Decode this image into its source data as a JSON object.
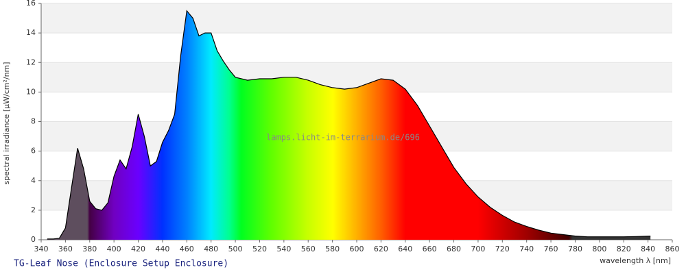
{
  "chart_data": {
    "type": "area",
    "title": "TG-Leaf Nose (Enclosure Setup Enclosure)",
    "watermark": "lamps.licht-im-terrarium.de/696",
    "x_label": "wavelength λ [nm]",
    "y_label": "spectral irradiance [µW/cm²/nm]",
    "x": [
      345,
      350,
      355,
      360,
      365,
      370,
      375,
      380,
      385,
      390,
      395,
      400,
      405,
      410,
      415,
      420,
      425,
      430,
      435,
      440,
      445,
      450,
      455,
      460,
      465,
      470,
      475,
      480,
      485,
      490,
      495,
      500,
      510,
      520,
      530,
      540,
      550,
      560,
      570,
      580,
      590,
      600,
      610,
      620,
      630,
      640,
      650,
      660,
      670,
      680,
      690,
      700,
      710,
      720,
      730,
      740,
      750,
      760,
      770,
      780,
      790,
      800,
      810,
      820,
      830,
      842
    ],
    "values": [
      0.05,
      0.05,
      0.1,
      0.8,
      3.5,
      6.2,
      4.8,
      2.6,
      2.1,
      2.0,
      2.5,
      4.3,
      5.4,
      4.8,
      6.3,
      8.5,
      7.0,
      5.0,
      5.3,
      6.6,
      7.4,
      8.5,
      12.5,
      15.5,
      15.0,
      13.8,
      14.0,
      14.0,
      12.8,
      12.1,
      11.5,
      11.0,
      10.8,
      10.9,
      10.9,
      11.0,
      11.0,
      10.8,
      10.5,
      10.3,
      10.2,
      10.3,
      10.6,
      10.9,
      10.8,
      10.2,
      9.1,
      7.7,
      6.3,
      4.9,
      3.8,
      2.9,
      2.2,
      1.65,
      1.2,
      0.9,
      0.65,
      0.45,
      0.35,
      0.25,
      0.2,
      0.2,
      0.2,
      0.2,
      0.22,
      0.25
    ],
    "color": "#000000",
    "xlim": [
      340,
      860
    ],
    "xticks": [
      340,
      360,
      380,
      400,
      420,
      440,
      460,
      480,
      500,
      520,
      540,
      560,
      580,
      600,
      620,
      640,
      660,
      680,
      700,
      720,
      740,
      760,
      780,
      800,
      820,
      840,
      860
    ],
    "ylim": [
      0,
      16
    ],
    "yticks": [
      0,
      2,
      4,
      6,
      8,
      10,
      12,
      14,
      16
    ],
    "grid": true
  }
}
